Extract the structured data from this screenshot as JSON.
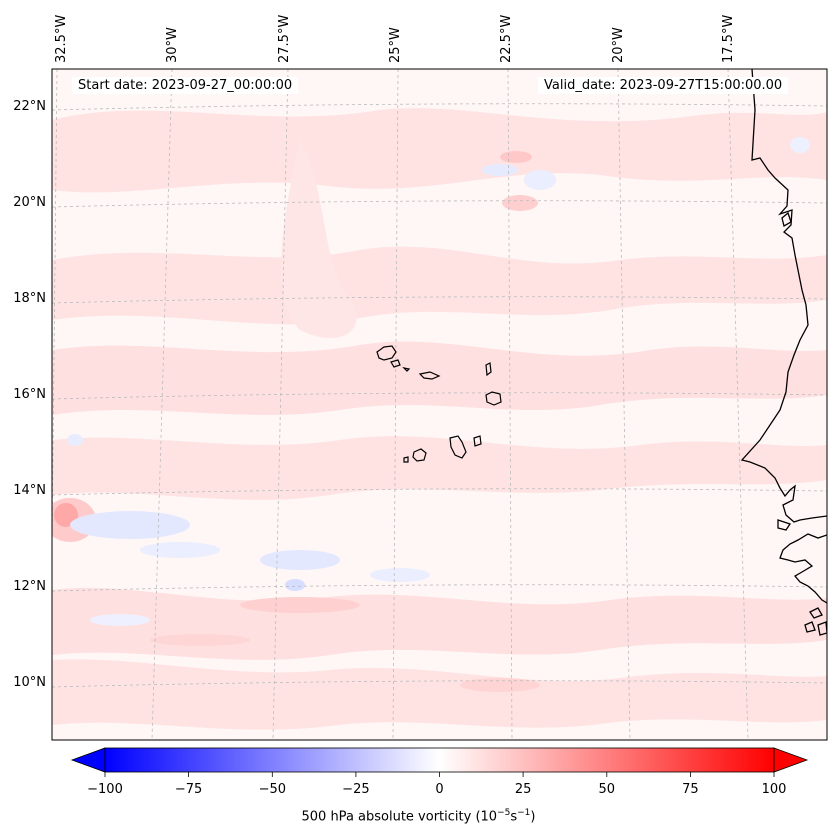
{
  "header": {
    "start_date": "Start date: 2023-09-27_00:00:00",
    "valid_date": "Valid_date: 2023-09-27T15:00:00.00"
  },
  "longitude_labels": [
    "32.5°W",
    "30°W",
    "27.5°W",
    "25°W",
    "22.5°W",
    "20°W",
    "17.5°W"
  ],
  "latitude_labels": [
    "22°N",
    "20°N",
    "18°N",
    "16°N",
    "14°N",
    "12°N",
    "10°N"
  ],
  "colorbar": {
    "ticks": [
      "−100",
      "−75",
      "−50",
      "−25",
      "0",
      "25",
      "50",
      "75",
      "100"
    ],
    "label_prefix": "500 hPa absolute vorticity (10",
    "label_exp1": "−5",
    "label_mid": "s",
    "label_exp2": "−1",
    "label_suffix": ")",
    "min": -100,
    "max": 100,
    "low_color": "#0000ff",
    "mid_color": "#ffffff",
    "high_color": "#ff0000"
  },
  "colors": {
    "background_field": "#fff6f6",
    "positive_weak": "#ffe1e1",
    "positive_moderate": "#ffc9c9",
    "negative_weak": "#e9ecff",
    "coastline": "#000000",
    "gridline": "#bbbbbb"
  }
}
